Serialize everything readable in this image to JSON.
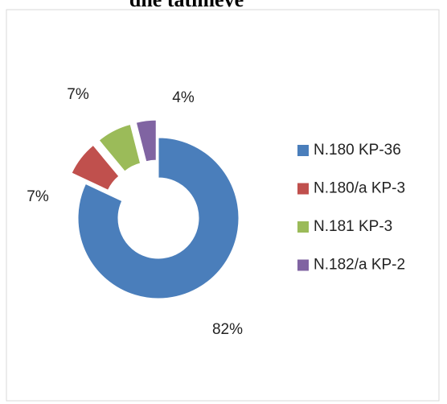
{
  "chart_data": {
    "type": "donut",
    "title": "dhe tatimeve",
    "categories": [
      "N.180 KP-36",
      "N.180/a KP-3",
      "N.181 KP-3",
      "N.182/a KP-2"
    ],
    "values": [
      82,
      7,
      7,
      4
    ],
    "value_labels": [
      "82%",
      "7%",
      "7%",
      "4%"
    ],
    "colors": [
      "#4a7ebb",
      "#c0504d",
      "#9bbb59",
      "#8064a2"
    ],
    "legend": "right"
  }
}
